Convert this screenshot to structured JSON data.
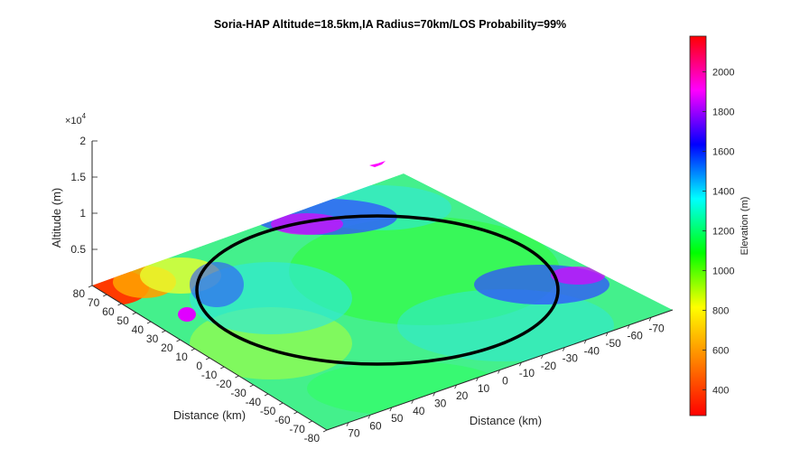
{
  "chart_data": {
    "type": "surface3d",
    "title": "Soria-HAP Altitude=18.5km,IA Radius=70km/LOS Probability=99%",
    "x_axis": {
      "label": "Distance (km)",
      "ticks": [
        70,
        60,
        50,
        40,
        30,
        20,
        10,
        0,
        -10,
        -20,
        -30,
        -40,
        -50,
        -60,
        -70
      ],
      "range": [
        -80,
        80
      ]
    },
    "y_axis": {
      "label": "Distance (km)",
      "ticks": [
        80,
        70,
        60,
        50,
        40,
        30,
        20,
        10,
        0,
        -10,
        -20,
        -30,
        -40,
        -50,
        -60,
        -70,
        -80
      ],
      "range": [
        -80,
        80
      ]
    },
    "z_axis": {
      "label": "Altitude (m)",
      "multiplier": "×10",
      "multiplier_exp": "4",
      "ticks": [
        "0.5",
        "1",
        "1.5",
        "2"
      ],
      "range": [
        0,
        20000
      ]
    },
    "hap_marker": {
      "altitude_km": 18.5,
      "color": "#ff00ff"
    },
    "coverage_circle": {
      "radius_km": 70,
      "color": "#000000"
    },
    "colorbar": {
      "label": "Elevation (m)",
      "ticks": [
        "2000",
        "1800",
        "1600",
        "1400",
        "1200",
        "1000",
        "800",
        "600",
        "400"
      ],
      "range": [
        270,
        2180
      ],
      "colormap": [
        "#ff0000",
        "#ff8000",
        "#ffff00",
        "#00ff00",
        "#00ffff",
        "#0000ff",
        "#ff00ff",
        "#ff0000"
      ]
    }
  }
}
